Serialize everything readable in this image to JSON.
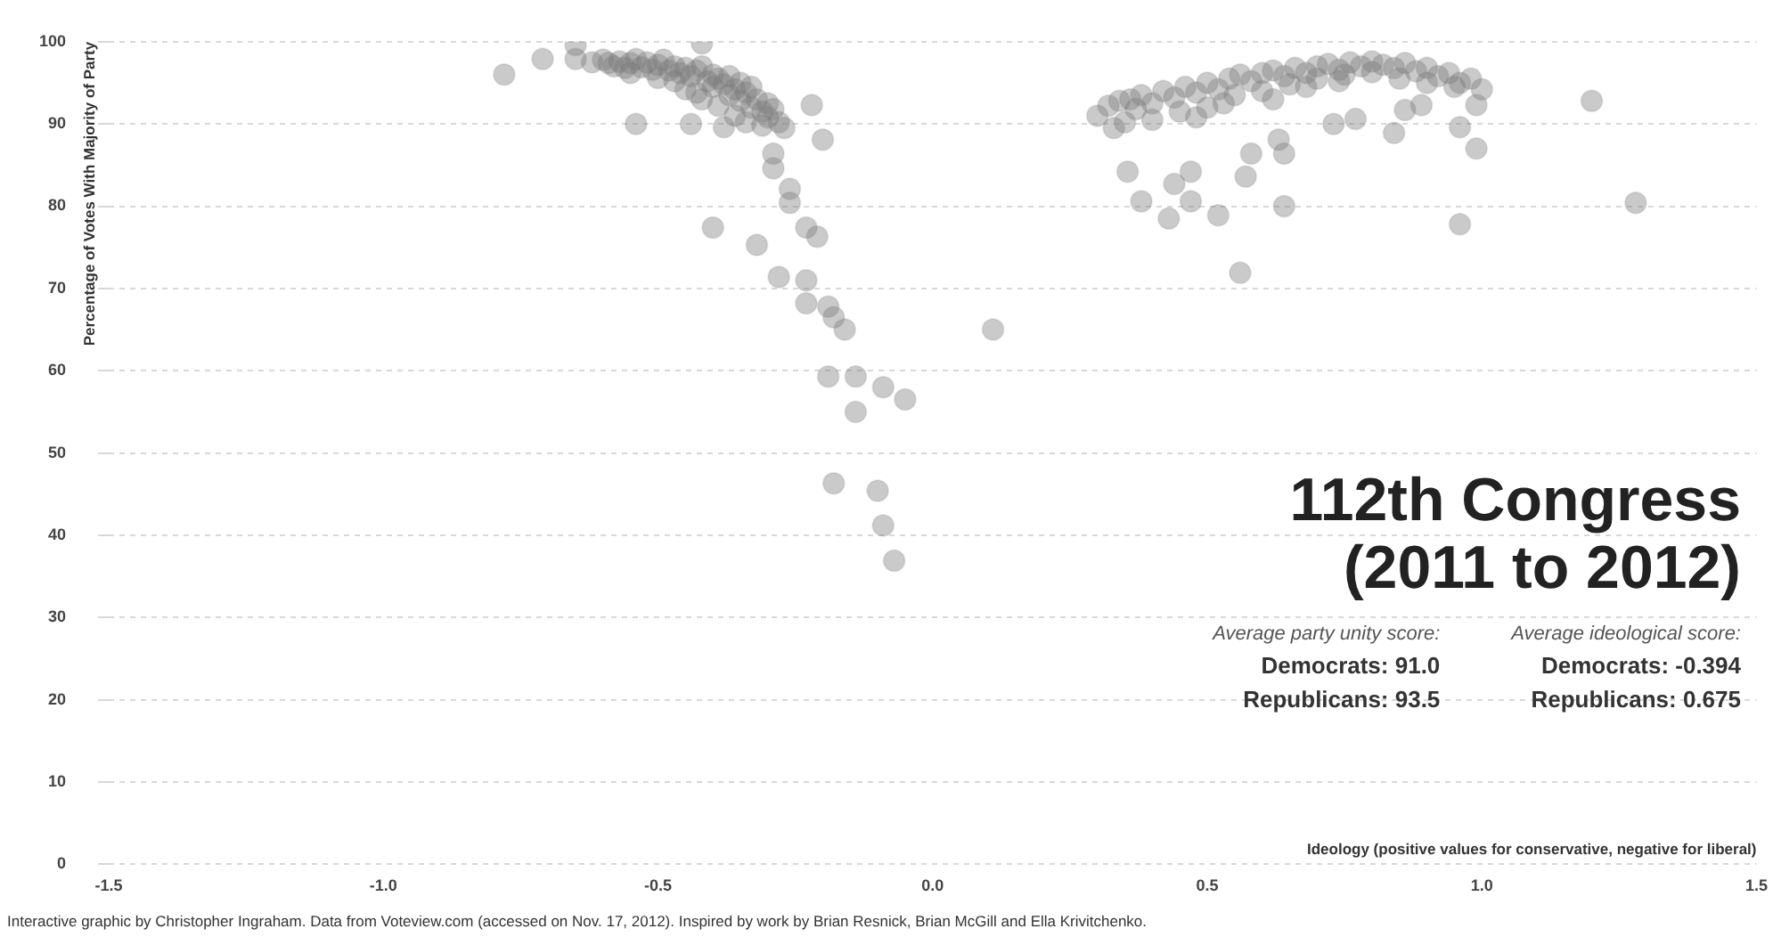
{
  "chart_data": {
    "type": "scatter",
    "title": "112th Congress (2011 to 2012)",
    "xlabel": "Ideology (positive values for conservative, negative for liberal)",
    "ylabel": "Percentage of Votes With Majority of Party",
    "annotations": [
      "Average party unity score:",
      "Democrats: 91.0",
      "Republicans: 93.5",
      "Average ideological score:",
      "Democrats: -0.394",
      "Republicans: 0.675",
      "Interactive graphic by Christopher Ingraham. Data from Voteview.com (accessed on Nov. 17, 2012). Inspired by work by Brian Resnick, Brian McGill and Ella Krivitchenko."
    ],
    "xlim": [
      -1.5,
      1.5
    ],
    "xticks": [
      {
        "value": -1.5,
        "label": "-1.5"
      },
      {
        "value": -1,
        "label": "-1.0"
      },
      {
        "value": -0.5,
        "label": "-0.5"
      },
      {
        "value": 0,
        "label": "0.0"
      },
      {
        "value": 0.5,
        "label": "0.5"
      },
      {
        "value": 1,
        "label": "1.0"
      },
      {
        "value": 1.5,
        "label": "1.5"
      }
    ],
    "ylim": [
      0,
      100
    ],
    "yticks": [
      0,
      10,
      20,
      30,
      40,
      50,
      60,
      70,
      80,
      90,
      100
    ],
    "grid": "y",
    "marker": "circle",
    "series": [
      {
        "color": "#7a7a7a",
        "x": [
          -0.78,
          -0.71,
          -0.65,
          -0.65,
          -0.59,
          -0.54,
          -0.44,
          -0.38,
          -0.42,
          -0.22,
          -0.2,
          -0.29,
          -0.29,
          -0.26,
          -0.26,
          -0.23,
          -0.21,
          -0.4,
          -0.32,
          -0.28,
          -0.23,
          -0.23,
          -0.19,
          -0.18,
          -0.16,
          -0.19,
          -0.14,
          -0.14,
          -0.09,
          -0.05,
          0.11,
          -0.18,
          -0.1,
          -0.09,
          -0.07,
          -0.62,
          -0.6,
          -0.58,
          -0.57,
          -0.56,
          -0.55,
          -0.54,
          -0.53,
          -0.52,
          -0.51,
          -0.5,
          -0.49,
          -0.48,
          -0.47,
          -0.46,
          -0.45,
          -0.44,
          -0.43,
          -0.42,
          -0.41,
          -0.4,
          -0.4,
          -0.39,
          -0.38,
          -0.37,
          -0.37,
          -0.36,
          -0.35,
          -0.35,
          -0.34,
          -0.33,
          -0.33,
          -0.32,
          -0.31,
          -0.3,
          -0.3,
          -0.29,
          -0.28,
          -0.27,
          -0.45,
          -0.42,
          -0.39,
          -0.36,
          -0.34,
          -0.31,
          -0.55,
          -0.5,
          -0.47,
          -0.43
        ],
        "values": [
          96,
          97.9,
          97.9,
          99.6,
          97.4,
          90,
          90,
          89.6,
          99.8,
          92.3,
          88.1,
          86.4,
          84.6,
          82.1,
          80.4,
          77.4,
          76.3,
          77.4,
          75.3,
          71.4,
          71,
          68.2,
          67.8,
          66.5,
          65,
          59.3,
          59.3,
          55,
          58,
          56.5,
          65,
          46.3,
          45.4,
          41.2,
          36.9,
          97.5,
          97.8,
          97,
          97.6,
          96.8,
          97.4,
          97.9,
          96.9,
          97.5,
          96.6,
          97.2,
          97.8,
          96.5,
          97,
          96.2,
          96.8,
          95.8,
          96.5,
          97,
          95.2,
          96,
          94.5,
          95.5,
          94.8,
          93.5,
          95.8,
          94.2,
          92.8,
          95,
          93.8,
          92,
          94.5,
          93,
          91.5,
          92.5,
          90.8,
          91.8,
          90.2,
          89.5,
          94.2,
          93,
          92.2,
          91,
          90.2,
          89.8,
          96.2,
          95.6,
          95.2,
          93.8
        ]
      },
      {
        "color": "#7a7a7a",
        "x": [
          0.355,
          0.38,
          0.43,
          0.44,
          0.47,
          0.47,
          0.52,
          0.56,
          0.57,
          0.58,
          0.63,
          0.64,
          0.64,
          0.73,
          0.77,
          0.84,
          0.86,
          0.89,
          0.96,
          0.96,
          0.99,
          0.99,
          1.2,
          1.28,
          0.3,
          0.32,
          0.34,
          0.36,
          0.38,
          0.4,
          0.42,
          0.44,
          0.46,
          0.48,
          0.5,
          0.52,
          0.54,
          0.56,
          0.58,
          0.6,
          0.62,
          0.64,
          0.66,
          0.68,
          0.7,
          0.72,
          0.74,
          0.76,
          0.78,
          0.8,
          0.82,
          0.84,
          0.86,
          0.88,
          0.9,
          0.92,
          0.94,
          0.96,
          0.98,
          1.0,
          0.35,
          0.4,
          0.45,
          0.5,
          0.55,
          0.6,
          0.65,
          0.7,
          0.75,
          0.8,
          0.85,
          0.9,
          0.95,
          0.33,
          0.37,
          0.48,
          0.53,
          0.62,
          0.68,
          0.74
        ],
        "values": [
          84.2,
          80.6,
          78.5,
          82.7,
          84.2,
          80.6,
          78.9,
          71.9,
          83.6,
          86.4,
          88.1,
          86.4,
          80,
          90,
          90.6,
          88.9,
          91.7,
          92.3,
          77.8,
          89.6,
          87,
          92.3,
          92.8,
          80.4,
          91,
          92.2,
          92.8,
          93,
          93.5,
          92.5,
          94,
          93.2,
          94.5,
          93.8,
          95,
          94.2,
          95.5,
          96,
          95.2,
          96.2,
          96.5,
          95.8,
          96.8,
          96.2,
          97,
          97.3,
          96.6,
          97.5,
          97,
          97.6,
          97.2,
          96.8,
          97.4,
          96.4,
          96.8,
          95.8,
          96.2,
          95,
          95.5,
          94.2,
          90.2,
          90.5,
          91.5,
          92,
          93.5,
          94,
          94.8,
          95.5,
          96,
          96.3,
          95.5,
          95,
          94.5,
          89.5,
          91.8,
          90.8,
          92.5,
          93,
          94.5,
          95.2
        ]
      }
    ]
  }
}
